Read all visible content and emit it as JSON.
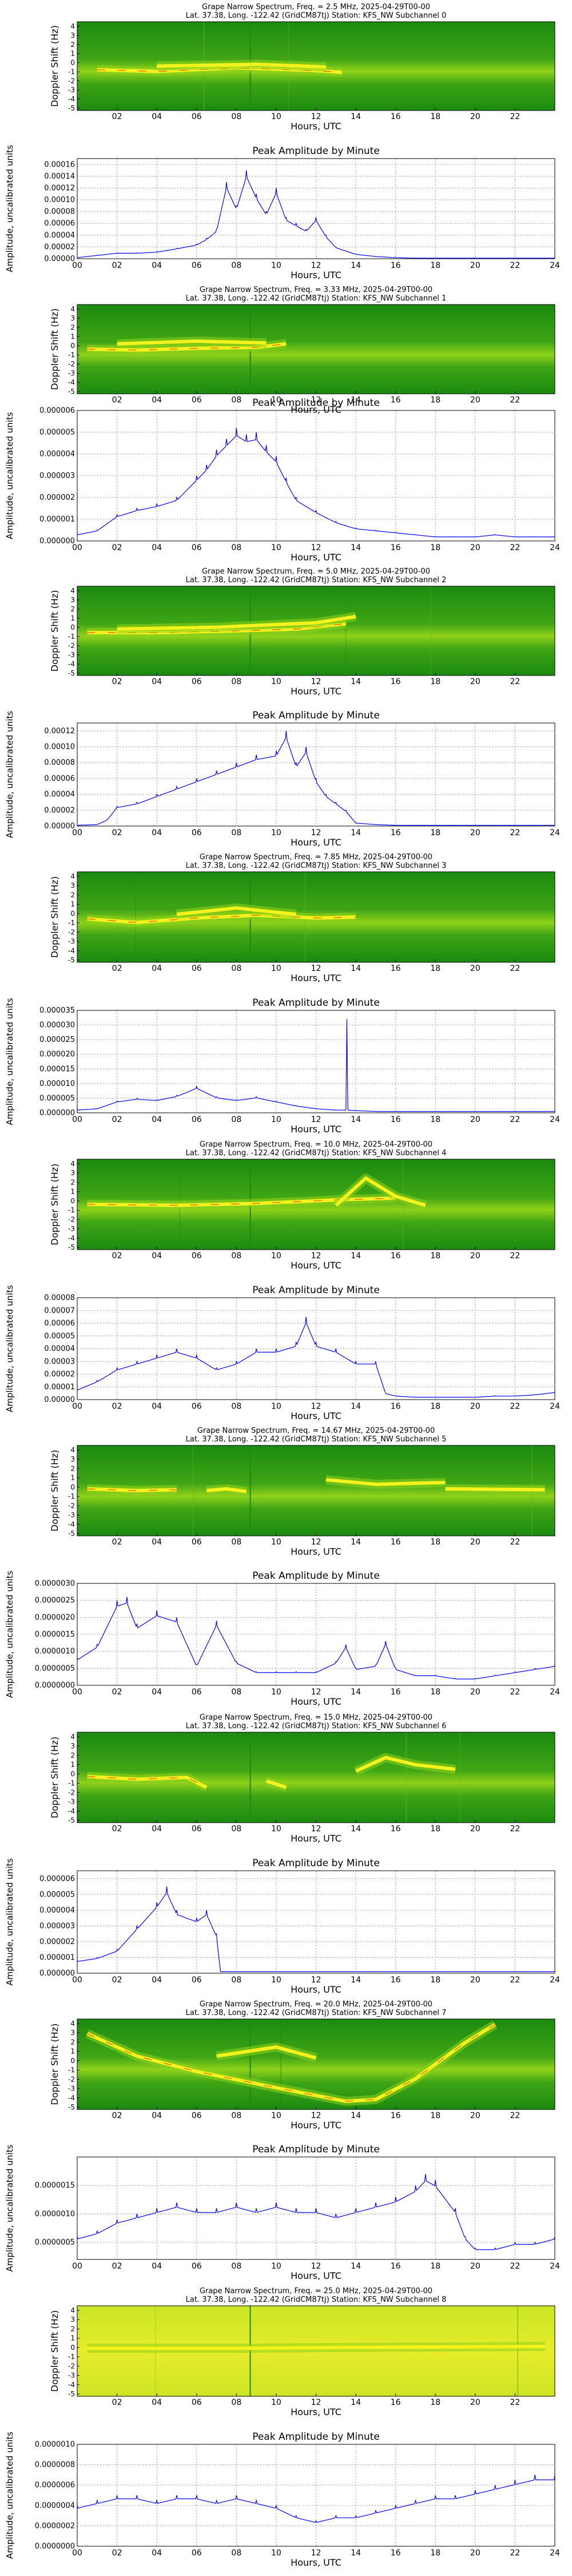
{
  "spectrum": {
    "ylabel": "Doppler Shift (Hz)",
    "xlabel": "Hours, UTC",
    "x_ticks": [
      "02",
      "04",
      "06",
      "08",
      "10",
      "12",
      "14",
      "16",
      "18",
      "20",
      "22"
    ],
    "y_ticks": [
      "4",
      "3",
      "2",
      "1",
      "0",
      "-1",
      "-2",
      "-3",
      "-4",
      "-5"
    ],
    "colors": {
      "background": "#1b8a10",
      "mid": "#8fd11a",
      "signal": "#f4f21c",
      "peak": "#e8521a"
    }
  },
  "amplitude": {
    "title": "Peak Amplitude by Minute",
    "xlabel": "Hours, UTC",
    "ylabel": "Amplitude, uncalibrated units",
    "x_ticks": [
      "00",
      "02",
      "04",
      "06",
      "08",
      "10",
      "12",
      "14",
      "16",
      "18",
      "20",
      "22",
      "24"
    ],
    "line_color": "#0000ff",
    "grid": true
  },
  "panels": [
    {
      "title1": "Grape Narrow Spectrum, Freq. = 2.5 MHz, 2025-04-29T00-00",
      "title2": "Lat.  37.38, Long. -122.42 (GridCM87tj) Station: KFS_NW Subchannel 0",
      "yticks": [
        "0.00016",
        "0.00014",
        "0.00012",
        "0.00010",
        "0.00008",
        "0.00006",
        "0.00004",
        "0.00002",
        "0.00000"
      ]
    },
    {
      "title1": "Grape Narrow Spectrum, Freq. = 3.33 MHz, 2025-04-29T00-00",
      "title2": "Lat.  37.38, Long. -122.42 (GridCM87tj) Station: KFS_NW Subchannel 1",
      "yticks": [
        "0.000006",
        "0.000005",
        "0.000004",
        "0.000003",
        "0.000002",
        "0.000001",
        "0.000000"
      ]
    },
    {
      "title1": "Grape Narrow Spectrum, Freq. = 5.0 MHz, 2025-04-29T00-00",
      "title2": "Lat.  37.38, Long. -122.42 (GridCM87tj) Station: KFS_NW Subchannel 2",
      "yticks": [
        "0.00012",
        "0.00010",
        "0.00008",
        "0.00006",
        "0.00004",
        "0.00002",
        "0.00000"
      ]
    },
    {
      "title1": "Grape Narrow Spectrum, Freq. = 7.85 MHz, 2025-04-29T00-00",
      "title2": "Lat.  37.38, Long. -122.42 (GridCM87tj) Station: KFS_NW Subchannel 3",
      "yticks": [
        "0.000035",
        "0.000030",
        "0.000025",
        "0.000020",
        "0.000015",
        "0.000010",
        "0.000005",
        "0.000000"
      ]
    },
    {
      "title1": "Grape Narrow Spectrum, Freq. = 10.0 MHz, 2025-04-29T00-00",
      "title2": "Lat.  37.38, Long. -122.42 (GridCM87tj) Station: KFS_NW Subchannel 4",
      "yticks": [
        "0.00008",
        "0.00007",
        "0.00006",
        "0.00005",
        "0.00004",
        "0.00003",
        "0.00002",
        "0.00001",
        "0.00000"
      ]
    },
    {
      "title1": "Grape Narrow Spectrum, Freq. = 14.67 MHz, 2025-04-29T00-00",
      "title2": "Lat.  37.38, Long. -122.42 (GridCM87tj) Station: KFS_NW Subchannel 5",
      "yticks": [
        "0.0000030",
        "0.0000025",
        "0.0000020",
        "0.0000015",
        "0.0000010",
        "0.0000005",
        "0.0000000"
      ]
    },
    {
      "title1": "Grape Narrow Spectrum, Freq. = 15.0 MHz, 2025-04-29T00-00",
      "title2": "Lat.  37.38, Long. -122.42 (GridCM87tj) Station: KFS_NW Subchannel 6",
      "yticks": [
        "0.000006",
        "0.000005",
        "0.000004",
        "0.000003",
        "0.000002",
        "0.000001",
        "0.000000"
      ]
    },
    {
      "title1": "Grape Narrow Spectrum, Freq. = 20.0 MHz, 2025-04-29T00-00",
      "title2": "Lat.  37.38, Long. -122.42 (GridCM87tj) Station: KFS_NW Subchannel 7",
      "yticks": [
        "0.0000015",
        "0.0000010",
        "0.0000005"
      ]
    },
    {
      "title1": "Grape Narrow Spectrum, Freq. = 25.0 MHz, 2025-04-29T00-00",
      "title2": "Lat.  37.38, Long. -122.42 (GridCM87tj) Station: KFS_NW Subchannel 8",
      "yticks": [
        "0.0000010",
        "0.0000008",
        "0.0000006",
        "0.0000004",
        "0.0000002",
        "0.0000000"
      ]
    }
  ],
  "chart_data": [
    {
      "type": "line",
      "title": "Peak Amplitude by Minute",
      "subchannel": 0,
      "ylim": [
        0,
        0.00017
      ],
      "x": [
        0,
        1,
        2,
        3,
        4,
        5,
        6,
        6.5,
        7,
        7.5,
        8,
        8.5,
        9,
        9.5,
        10,
        10.5,
        11,
        11.5,
        12,
        12.5,
        13,
        14,
        15,
        16,
        17,
        18,
        19,
        20,
        21,
        22,
        23,
        24
      ],
      "y": [
        2e-06,
        6e-06,
        1e-05,
        1e-05,
        1.2e-05,
        1.8e-05,
        2.5e-05,
        3.5e-05,
        5e-05,
        0.00013,
        9e-05,
        0.00015,
        0.00011,
        8e-05,
        0.00012,
        7e-05,
        6e-05,
        5e-05,
        7e-05,
        4e-05,
        2e-05,
        8e-06,
        4e-06,
        2e-06,
        1e-06,
        1e-06,
        1e-06,
        1e-06,
        1e-06,
        1e-06,
        1e-06,
        1e-06
      ]
    },
    {
      "type": "line",
      "title": "Peak Amplitude by Minute",
      "subchannel": 1,
      "ylim": [
        0,
        6e-06
      ],
      "x": [
        0,
        1,
        2,
        3,
        4,
        5,
        6,
        6.5,
        7,
        7.5,
        8,
        8.5,
        9,
        9.5,
        10,
        10.5,
        11,
        12,
        13,
        14,
        15,
        16,
        17,
        18,
        19,
        20,
        21,
        22,
        23,
        24
      ],
      "y": [
        3e-07,
        5e-07,
        1.2e-06,
        1.5e-06,
        1.7e-06,
        2e-06,
        3e-06,
        3.5e-06,
        4.2e-06,
        4.7e-06,
        5.2e-06,
        4.9e-06,
        5e-06,
        4.4e-06,
        3.9e-06,
        2.9e-06,
        2e-06,
        1.4e-06,
        9e-07,
        6e-07,
        5e-07,
        4e-07,
        3e-07,
        2e-07,
        2e-07,
        2e-07,
        3e-07,
        2e-07,
        2e-07,
        2e-07
      ]
    },
    {
      "type": "line",
      "title": "Peak Amplitude by Minute",
      "subchannel": 2,
      "ylim": [
        0,
        0.00013
      ],
      "x": [
        0,
        1,
        1.5,
        2,
        3,
        4,
        5,
        6,
        7,
        8,
        9,
        10,
        10.5,
        11,
        11.5,
        12,
        12.5,
        13,
        13.5,
        14,
        15,
        16,
        17,
        18,
        19,
        20,
        21,
        22,
        23,
        24
      ],
      "y": [
        1e-06,
        2e-06,
        8e-06,
        2.5e-05,
        3e-05,
        4e-05,
        5e-05,
        6e-05,
        7e-05,
        8e-05,
        9e-05,
        9.5e-05,
        0.00012,
        8e-05,
        0.0001,
        6e-05,
        4e-05,
        3e-05,
        2e-05,
        4e-06,
        2e-06,
        1e-06,
        1e-06,
        1e-06,
        1e-06,
        1e-06,
        1e-06,
        1e-06,
        1e-06,
        1e-06
      ]
    },
    {
      "type": "line",
      "title": "Peak Amplitude by Minute",
      "subchannel": 3,
      "ylim": [
        0,
        3.5e-05
      ],
      "x": [
        0,
        1,
        2,
        3,
        4,
        5,
        6,
        7,
        8,
        9,
        10,
        11,
        12,
        13,
        13.5,
        13.55,
        13.6,
        14,
        15,
        16,
        17,
        18,
        19,
        20,
        21,
        22,
        23,
        24
      ],
      "y": [
        1e-06,
        1.5e-06,
        4e-06,
        5e-06,
        4.5e-06,
        6e-06,
        9e-06,
        5.5e-06,
        4.5e-06,
        5.5e-06,
        4e-06,
        2.5e-06,
        1.5e-06,
        1e-06,
        1e-06,
        3.2e-05,
        1e-06,
        8e-07,
        5e-07,
        5e-07,
        5e-07,
        5e-07,
        5e-07,
        5e-07,
        5e-07,
        5e-07,
        5e-07,
        5e-07
      ]
    },
    {
      "type": "line",
      "title": "Peak Amplitude by Minute",
      "subchannel": 4,
      "ylim": [
        0,
        8e-05
      ],
      "x": [
        0,
        1,
        2,
        3,
        4,
        5,
        6,
        7,
        8,
        9,
        10,
        11,
        11.5,
        12,
        13,
        14,
        15,
        15.5,
        16,
        17,
        18,
        19,
        20,
        21,
        22,
        23,
        24
      ],
      "y": [
        8e-06,
        1.5e-05,
        2.5e-05,
        3e-05,
        3.5e-05,
        4e-05,
        3.5e-05,
        2.5e-05,
        3e-05,
        4e-05,
        4e-05,
        4.5e-05,
        6.5e-05,
        4.5e-05,
        4e-05,
        3e-05,
        3e-05,
        5e-06,
        3e-06,
        2e-06,
        2e-06,
        2e-06,
        2e-06,
        3e-06,
        3e-06,
        4e-06,
        6e-06
      ]
    },
    {
      "type": "line",
      "title": "Peak Amplitude by Minute",
      "subchannel": 5,
      "ylim": [
        0,
        3e-06
      ],
      "x": [
        0,
        1,
        2,
        2.5,
        3,
        4,
        5,
        6,
        7,
        8,
        9,
        10,
        11,
        12,
        13,
        13.5,
        14,
        15,
        15.5,
        16,
        17,
        18,
        19,
        20,
        21,
        22,
        23,
        24
      ],
      "y": [
        8e-07,
        1.2e-06,
        2.5e-06,
        2.6e-06,
        1.8e-06,
        2.2e-06,
        2e-06,
        6e-07,
        1.9e-06,
        7e-07,
        4e-07,
        4e-07,
        4e-07,
        4e-07,
        7e-07,
        1.2e-06,
        5e-07,
        6e-07,
        1.3e-06,
        5e-07,
        3e-07,
        3e-07,
        2e-07,
        2e-07,
        3e-07,
        4e-07,
        5e-07,
        6e-07
      ]
    },
    {
      "type": "line",
      "title": "Peak Amplitude by Minute",
      "subchannel": 6,
      "ylim": [
        0,
        6.5e-06
      ],
      "x": [
        0,
        1,
        2,
        3,
        4,
        4.5,
        5,
        6,
        6.5,
        7,
        7.2,
        8,
        9,
        10,
        11,
        12,
        13,
        14,
        15,
        16,
        17,
        18,
        19,
        20,
        21,
        22,
        23,
        24
      ],
      "y": [
        8e-07,
        1e-06,
        1.5e-06,
        3e-06,
        4.5e-06,
        5.5e-06,
        4e-06,
        3.5e-06,
        4e-06,
        2.5e-06,
        1e-07,
        1e-07,
        1e-07,
        1e-07,
        1e-07,
        1e-07,
        1e-07,
        1e-07,
        1e-07,
        1e-07,
        1e-07,
        1e-07,
        1e-07,
        1e-07,
        1e-07,
        1e-07,
        1e-07,
        1e-07
      ]
    },
    {
      "type": "line",
      "title": "Peak Amplitude by Minute",
      "subchannel": 7,
      "ylim": [
        2e-07,
        2e-06
      ],
      "x": [
        0,
        1,
        2,
        3,
        4,
        5,
        6,
        7,
        8,
        9,
        10,
        11,
        12,
        13,
        14,
        15,
        16,
        17,
        17.5,
        18,
        19,
        19.5,
        20,
        21,
        22,
        23,
        24
      ],
      "y": [
        6e-07,
        7e-07,
        9e-07,
        1e-06,
        1.1e-06,
        1.2e-06,
        1.1e-06,
        1.1e-06,
        1.2e-06,
        1.1e-06,
        1.2e-06,
        1.1e-06,
        1.1e-06,
        1e-06,
        1.1e-06,
        1.2e-06,
        1.3e-06,
        1.5e-06,
        1.7e-06,
        1.6e-06,
        1.1e-06,
        6e-07,
        4e-07,
        4e-07,
        5e-07,
        5e-07,
        6e-07
      ]
    },
    {
      "type": "line",
      "title": "Peak Amplitude by Minute",
      "subchannel": 8,
      "ylim": [
        0,
        1e-06
      ],
      "x": [
        0,
        1,
        2,
        3,
        4,
        5,
        6,
        7,
        8,
        9,
        10,
        11,
        12,
        13,
        14,
        15,
        16,
        17,
        18,
        19,
        20,
        21,
        22,
        23,
        24
      ],
      "y": [
        4e-07,
        4.5e-07,
        5e-07,
        5e-07,
        4.5e-07,
        5e-07,
        5e-07,
        4.5e-07,
        5e-07,
        4.5e-07,
        4e-07,
        3e-07,
        2.5e-07,
        3e-07,
        3e-07,
        3.5e-07,
        4e-07,
        4.5e-07,
        5e-07,
        5e-07,
        5.5e-07,
        6e-07,
        6.5e-07,
        7e-07,
        7e-07
      ]
    }
  ]
}
